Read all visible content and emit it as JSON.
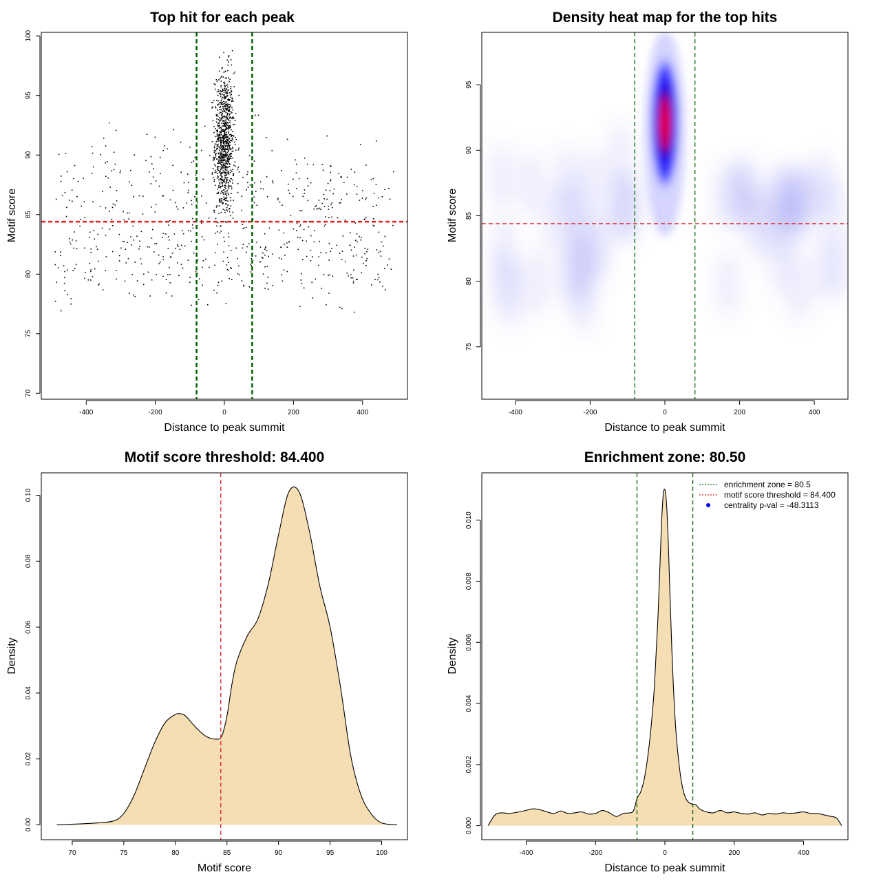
{
  "chart_data": [
    {
      "type": "scatter",
      "title": "Top hit for each peak",
      "xlabel": "Distance to peak summit",
      "ylabel": "Motif score",
      "xlim": [
        -530,
        530
      ],
      "ylim": [
        69.5,
        100.3
      ],
      "xticks": [
        -400,
        -200,
        0,
        200,
        400
      ],
      "yticks": [
        70,
        75,
        80,
        85,
        90,
        95,
        100
      ],
      "hline": {
        "y": 84.4,
        "color": "#dd2222",
        "style": "dashed"
      },
      "vlines": [
        {
          "x": -80.5,
          "color": "#006400",
          "style": "dashed"
        },
        {
          "x": 80.5,
          "color": "#006400",
          "style": "dashed"
        }
      ],
      "points": {
        "n_central": 900,
        "n_background": 650,
        "central_center": 0,
        "central_sd": 14,
        "central_score_mean": 91,
        "central_score_sd": 3.0,
        "background_x_range": [
          -490,
          490
        ],
        "background_score_modes": [
          [
            86.5,
            2.6,
            0.55
          ],
          [
            81,
            1.8,
            0.45
          ]
        ]
      }
    },
    {
      "type": "heatmap",
      "title": "Density heat map for the top hits",
      "xlabel": "Distance to peak summit",
      "ylabel": "Motif score",
      "xlim": [
        -490,
        490
      ],
      "ylim": [
        71,
        99
      ],
      "xticks": [
        -400,
        -200,
        0,
        200,
        400
      ],
      "yticks": [
        75,
        80,
        85,
        90,
        95
      ],
      "hotspot": {
        "x": 0,
        "y": 91.5,
        "colors": [
          "#ffffff",
          "#0000ff",
          "#ff0000"
        ]
      },
      "hline": {
        "y": 84.4,
        "color": "#dd2222",
        "style": "dashed"
      },
      "vlines": [
        {
          "x": -80.5,
          "color": "#006400",
          "style": "dashed"
        },
        {
          "x": 80.5,
          "color": "#006400",
          "style": "dashed"
        }
      ]
    },
    {
      "type": "area",
      "title": "Motif score threshold: 84.400",
      "xlabel": "Motif score",
      "ylabel": "Density",
      "xlim": [
        67,
        102.5
      ],
      "ylim": [
        -0.0045,
        0.1068
      ],
      "xticks": [
        70,
        75,
        80,
        85,
        90,
        95,
        100
      ],
      "yticks": [
        0.0,
        0.02,
        0.04,
        0.06,
        0.08,
        0.1
      ],
      "ytick_labels": [
        "0.00",
        "0.02",
        "0.04",
        "0.06",
        "0.08",
        "0.10"
      ],
      "fill": "#f5deb3",
      "vline": {
        "x": 84.4,
        "color": "#dd2222",
        "style": "dashed"
      },
      "x": [
        68.5,
        72,
        74,
        75,
        76,
        77,
        78,
        79,
        80,
        80.5,
        81,
        82,
        83,
        84,
        84.5,
        85,
        85.5,
        86,
        87,
        88,
        89,
        90,
        91,
        92,
        93,
        94,
        95,
        96,
        97,
        98,
        99,
        100,
        101.5
      ],
      "y": [
        0.0,
        0.0005,
        0.0012,
        0.0035,
        0.009,
        0.017,
        0.025,
        0.031,
        0.0335,
        0.0337,
        0.033,
        0.0295,
        0.0268,
        0.026,
        0.027,
        0.033,
        0.043,
        0.05,
        0.0575,
        0.0625,
        0.073,
        0.088,
        0.101,
        0.101,
        0.089,
        0.0725,
        0.06,
        0.042,
        0.021,
        0.009,
        0.0033,
        0.0006,
        0.0
      ]
    },
    {
      "type": "area",
      "title": "Enrichment zone: 80.50",
      "xlabel": "Distance to peak summit",
      "ylabel": "Density",
      "xlim": [
        -528,
        528
      ],
      "ylim": [
        -0.00046,
        0.01155
      ],
      "xticks": [
        -400,
        -200,
        0,
        200,
        400
      ],
      "yticks": [
        0.0,
        0.002,
        0.004,
        0.006,
        0.008,
        0.01
      ],
      "ytick_labels": [
        "0.000",
        "0.002",
        "0.004",
        "0.006",
        "0.008",
        "0.010"
      ],
      "fill": "#f5deb3",
      "vlines": [
        {
          "x": -80.5,
          "color": "#006400",
          "style": "dashed"
        },
        {
          "x": 80.5,
          "color": "#006400",
          "style": "dashed"
        }
      ],
      "x": [
        -510,
        -490,
        -470,
        -450,
        -420,
        -400,
        -380,
        -360,
        -340,
        -320,
        -300,
        -280,
        -260,
        -240,
        -220,
        -200,
        -180,
        -160,
        -140,
        -120,
        -100,
        -90,
        -80,
        -70,
        -60,
        -50,
        -40,
        -30,
        -20,
        -10,
        -5,
        0,
        5,
        10,
        20,
        30,
        40,
        50,
        60,
        70,
        80,
        90,
        100,
        120,
        140,
        160,
        180,
        200,
        220,
        240,
        260,
        280,
        300,
        320,
        340,
        360,
        380,
        400,
        420,
        440,
        460,
        480,
        495,
        510
      ],
      "y": [
        0.0,
        0.00035,
        0.00042,
        0.0004,
        0.00045,
        0.0005,
        0.00055,
        0.00052,
        0.00045,
        0.0004,
        0.00048,
        0.0004,
        0.00042,
        0.00045,
        0.00038,
        0.0004,
        0.0005,
        0.00042,
        0.0003,
        0.0004,
        0.00042,
        0.0005,
        0.0009,
        0.0011,
        0.0015,
        0.0022,
        0.0032,
        0.0046,
        0.0068,
        0.0098,
        0.0108,
        0.011,
        0.0105,
        0.0092,
        0.0058,
        0.0034,
        0.0021,
        0.0013,
        0.0009,
        0.00075,
        0.0007,
        0.00068,
        0.00055,
        0.00045,
        0.00042,
        0.0005,
        0.00042,
        0.00045,
        0.0004,
        0.00038,
        0.00042,
        0.00035,
        0.0004,
        0.00038,
        0.00042,
        0.0004,
        0.00042,
        0.00045,
        0.0004,
        0.0004,
        0.00035,
        0.0003,
        0.00025,
        0.0
      ],
      "legend": {
        "position": "top-right",
        "entries": [
          {
            "label": "enrichment zone = 80.5",
            "color": "#006400",
            "kind": "line"
          },
          {
            "label": "motif score threshold = 84.400",
            "color": "#dd2222",
            "kind": "line"
          },
          {
            "label": "centrality p-val = -48.3113",
            "color": "#0000ff",
            "kind": "dot"
          }
        ]
      }
    }
  ]
}
